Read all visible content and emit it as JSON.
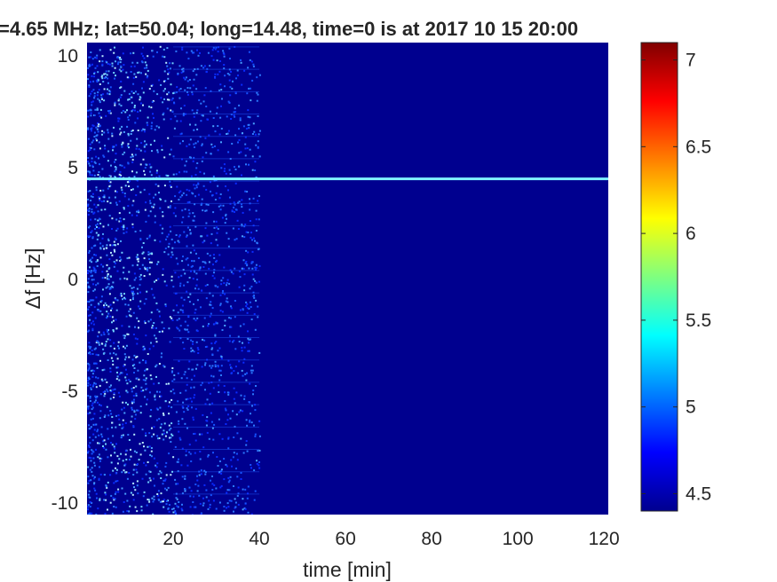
{
  "chart_data": {
    "type": "heatmap",
    "title": "=4.65 MHz;  lat=50.04; long=14.48, time=0 is at 2017 10 15 20:00",
    "xlabel": "time [min]",
    "ylabel": "Δf [Hz]",
    "xlim": [
      0,
      121
    ],
    "ylim": [
      -10.5,
      10.5
    ],
    "xticks": [
      20,
      40,
      60,
      80,
      100,
      120
    ],
    "xtick_labels": [
      "20",
      "40",
      "60",
      "80",
      "100",
      "120"
    ],
    "yticks": [
      10,
      5,
      0,
      -5,
      -10
    ],
    "ytick_labels": [
      "10",
      "5",
      "0",
      "-5",
      "-10"
    ],
    "colorbar": {
      "colormap": "jet",
      "range": [
        4.4,
        7.1
      ],
      "ticks": [
        7,
        6.5,
        6,
        5.5,
        5,
        4.5
      ],
      "tick_labels": [
        "7",
        "6.5",
        "6",
        "5.5",
        "5",
        "4.5"
      ]
    },
    "background_value": 4.5,
    "features": {
      "noise_band": {
        "x_range": [
          0,
          40
        ],
        "strongest_x_range": [
          2,
          20
        ]
      },
      "carrier_line": {
        "df_hz": 4.5,
        "x_range": [
          0,
          121
        ],
        "value": 5.4
      }
    },
    "colors": {
      "background": "#00008f",
      "noise_light": "#3a8dff",
      "line": "#7ff0ff"
    }
  }
}
